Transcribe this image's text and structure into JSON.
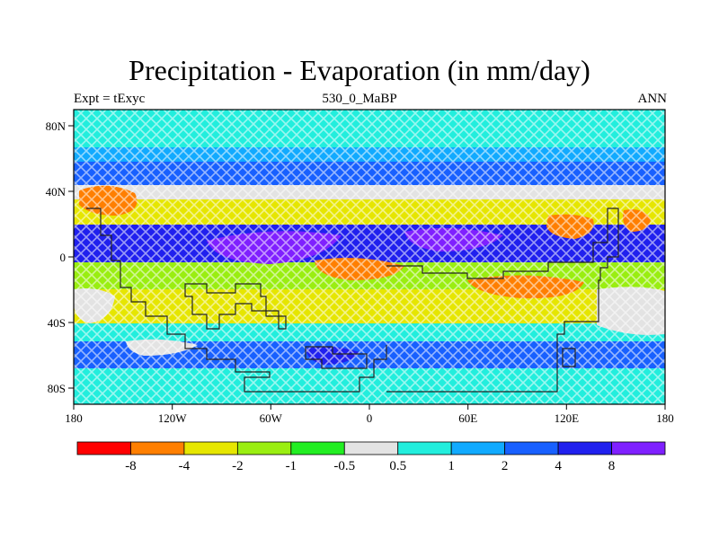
{
  "header": {
    "title": "Precipitation - Evaporation (in mm/day)",
    "left_string": "Expt = tExyc",
    "center_string": "530_0_MaBP",
    "right_string": "ANN"
  },
  "axes": {
    "x_ticks": [
      "180",
      "120W",
      "60W",
      "0",
      "60E",
      "120E",
      "180"
    ],
    "y_ticks": [
      "80N",
      "40N",
      "0",
      "40S",
      "80S"
    ],
    "x_range": [
      -180,
      180
    ],
    "y_range": [
      -90,
      90
    ]
  },
  "colorbar": {
    "labels": [
      "-8",
      "-4",
      "-2",
      "-1",
      "-0.5",
      "0.5",
      "1",
      "2",
      "4",
      "8"
    ],
    "colors": [
      "#ff0000",
      "#ff7f00",
      "#e6e600",
      "#9aee11",
      "#22ee22",
      "#e3e3e3",
      "#22eedd",
      "#11aaff",
      "#1860ff",
      "#2020ee",
      "#7f20ff"
    ]
  },
  "chart_data": {
    "type": "heatmap",
    "variable": "Precipitation - Evaporation",
    "units": "mm/day",
    "levels": [
      -8,
      -4,
      -2,
      -1,
      -0.5,
      0.5,
      1,
      2,
      4,
      8
    ],
    "lon_range": [
      -180,
      180
    ],
    "lat_range": [
      -90,
      90
    ],
    "zonal_bands_approx": [
      {
        "lat": [
          70,
          90
        ],
        "class": "0.5 to 1"
      },
      {
        "lat": [
          55,
          70
        ],
        "class": "1 to 2"
      },
      {
        "lat": [
          45,
          55
        ],
        "class": "2 to 4"
      },
      {
        "lat": [
          35,
          45
        ],
        "class": "-0.5 to 0.5"
      },
      {
        "lat": [
          20,
          35
        ],
        "class": "-4 to -2"
      },
      {
        "lat": [
          0,
          20
        ],
        "class": "4 to 8"
      },
      {
        "lat": [
          -20,
          0
        ],
        "class": "-2 to -1"
      },
      {
        "lat": [
          -40,
          -20
        ],
        "class": "-4 to -2"
      },
      {
        "lat": [
          -50,
          -40
        ],
        "class": "0.5 to 1"
      },
      {
        "lat": [
          -65,
          -50
        ],
        "class": "2 to 4"
      },
      {
        "lat": [
          -90,
          -65
        ],
        "class": "0.5 to 1"
      }
    ]
  }
}
